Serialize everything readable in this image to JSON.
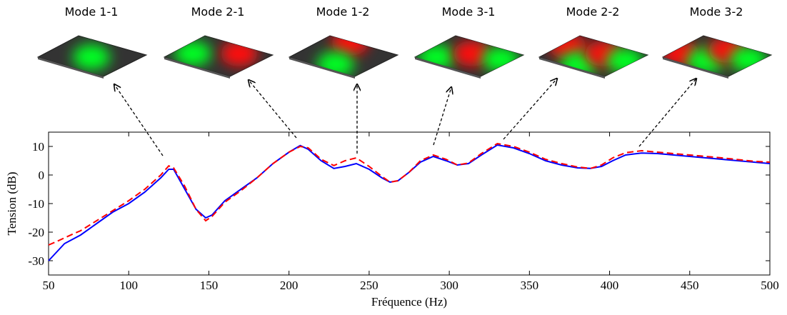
{
  "chart_data": {
    "type": "line",
    "annotations": [
      "Mode 1-1",
      "Mode 2-1",
      "Mode 1-2",
      "Mode 3-1",
      "Mode 2-2",
      "Mode 3-2"
    ],
    "x_label": "Fréquence (Hz)",
    "y_label": "Tension (dB)",
    "x": [
      50,
      55,
      60,
      65,
      70,
      80,
      90,
      100,
      110,
      120,
      125,
      128,
      135,
      142,
      148,
      152,
      160,
      170,
      180,
      190,
      200,
      207,
      212,
      220,
      228,
      235,
      242,
      250,
      258,
      263,
      268,
      275,
      282,
      290,
      298,
      305,
      312,
      320,
      330,
      340,
      350,
      360,
      370,
      380,
      388,
      395,
      402,
      410,
      420,
      430,
      450,
      470,
      490,
      500
    ],
    "series": [
      {
        "color": "#0000ff",
        "dash": false,
        "values": [
          -30,
          -27,
          -24,
          -22.5,
          -21,
          -17,
          -13,
          -10,
          -6,
          -1,
          2,
          2,
          -5,
          -12,
          -15,
          -14,
          -9,
          -5,
          -1,
          4,
          8,
          10.3,
          9,
          5,
          2.3,
          3,
          4,
          2,
          -1,
          -2.5,
          -2,
          1,
          4.5,
          6.5,
          5,
          3.5,
          4,
          7,
          10.5,
          9.5,
          7.5,
          5,
          3.5,
          2.5,
          2.3,
          3,
          5,
          7,
          7.7,
          7.5,
          6.5,
          5.5,
          4.5,
          4
        ]
      },
      {
        "color": "#ff0000",
        "dash": true,
        "values": [
          -24.5,
          -23.3,
          -22,
          -20.7,
          -19.5,
          -16,
          -12.5,
          -9,
          -5,
          0,
          3.2,
          2.5,
          -4,
          -12,
          -16,
          -14.5,
          -9.5,
          -5.5,
          -1,
          4,
          8,
          10,
          9.5,
          5.5,
          3.3,
          5,
          6,
          3,
          -0.5,
          -2.5,
          -2,
          1,
          5,
          7,
          5.5,
          3.5,
          4.2,
          7.5,
          11,
          10,
          8,
          5.5,
          4,
          2.8,
          2.3,
          3.5,
          6,
          7.8,
          8.5,
          8,
          7,
          6,
          4.8,
          4.5
        ]
      }
    ],
    "xlim": [
      50,
      500
    ],
    "xticks": [
      50,
      100,
      150,
      200,
      250,
      300,
      350,
      400,
      450,
      500
    ],
    "ylim": [
      -35,
      15
    ],
    "yticks": [
      -30,
      -20,
      -10,
      0,
      10
    ]
  }
}
